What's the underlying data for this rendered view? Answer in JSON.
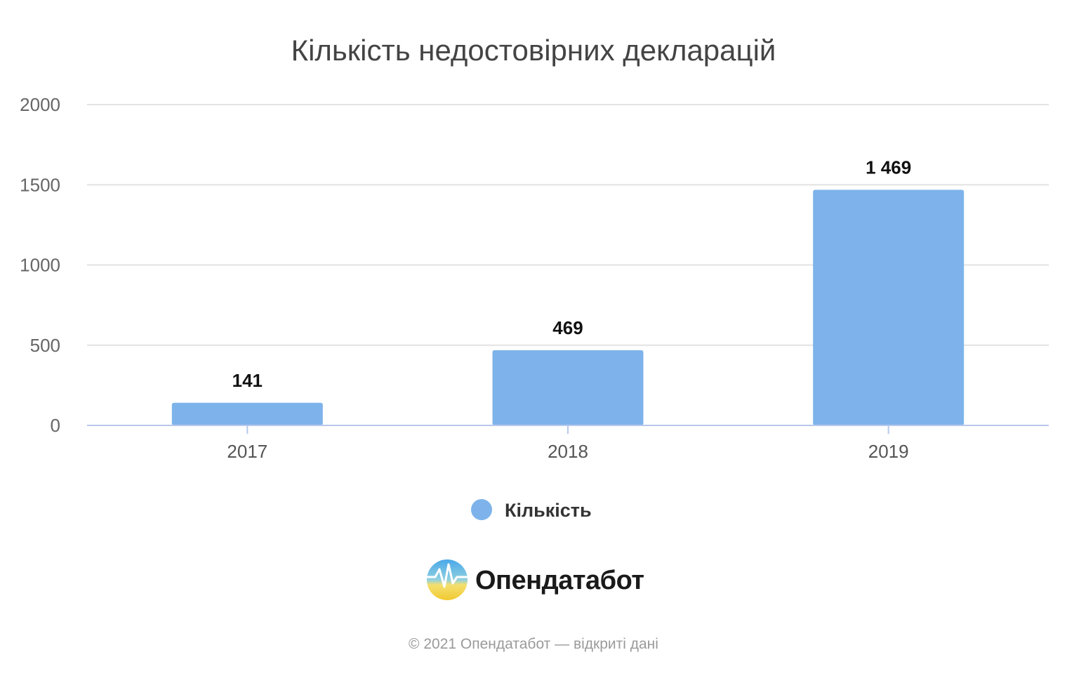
{
  "chart_data": {
    "type": "bar",
    "title": "Кількість недостовірних декларацій",
    "categories": [
      "2017",
      "2018",
      "2019"
    ],
    "series": [
      {
        "name": "Кількість",
        "values": [
          141,
          469,
          1469
        ],
        "data_labels": [
          "141",
          "469",
          "1 469"
        ]
      }
    ],
    "yticks": [
      "0",
      "500",
      "1000",
      "1500",
      "2000"
    ],
    "ylim": [
      0,
      2000
    ],
    "grid": true,
    "legend_position": "bottom-center"
  },
  "colors": {
    "bar": "#7db3ea",
    "grid": "#e3e3e3",
    "axis": "#b8c8ec"
  },
  "brand": {
    "name": "Опендатабот",
    "icon": "opendatabot-logo-icon"
  },
  "footer": "© 2021 Опендатабот — відкриті дані"
}
